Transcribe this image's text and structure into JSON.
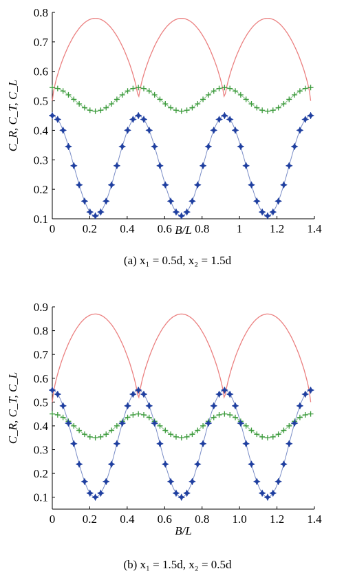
{
  "panels": [
    {
      "caption": "(a) x₁ = 0.5d, x₂ = 1.5d",
      "xlabel": "B/L",
      "ylabel": "C_R, C_T, C_L",
      "xlim": [
        0,
        1.4
      ],
      "ylim": [
        0.1,
        0.8
      ],
      "xticks": [
        "0",
        "0.2",
        "0.4",
        "0.6",
        "0.8",
        "1",
        "1.2",
        "1.4"
      ],
      "yticks": [
        "0.1",
        "0.2",
        "0.3",
        "0.4",
        "0.5",
        "0.6",
        "0.7",
        "0.8"
      ],
      "series": [
        {
          "color": "#e86a6a",
          "marker": "none",
          "mean": 0.64,
          "amp": -0.14,
          "peak_shape": 1,
          "min": 0.5,
          "max": 0.78
        },
        {
          "color": "#3a9a3a",
          "marker": "plus",
          "mean": 0.505,
          "amp": 0.04
        },
        {
          "color": "#1f3fa0",
          "marker": "star",
          "mean": 0.28,
          "amp": 0.17
        }
      ]
    },
    {
      "caption": "(b) x₁ = 1.5d, x₂ = 0.5d",
      "xlabel": "B/L",
      "ylabel": "C_R, C_T, C_L",
      "xlim": [
        0,
        1.4
      ],
      "ylim": [
        0.05,
        0.9
      ],
      "xticks": [
        "0",
        "0.2",
        "0.4",
        "0.6",
        "0.8",
        "1.0",
        "1.2",
        "1.4"
      ],
      "yticks": [
        "0.1",
        "0.2",
        "0.3",
        "0.4",
        "0.5",
        "0.6",
        "0.7",
        "0.8",
        "0.9"
      ],
      "series": [
        {
          "color": "#e86a6a",
          "marker": "none",
          "min": 0.5,
          "max": 0.87
        },
        {
          "color": "#3a9a3a",
          "marker": "plus",
          "mean": 0.4,
          "amp": 0.05
        },
        {
          "color": "#1f3fa0",
          "marker": "star",
          "mean": 0.325,
          "amp": 0.225
        }
      ]
    }
  ],
  "chart_data": [
    {
      "type": "line",
      "xlabel": "B/L",
      "ylabel": "C_R, C_T, C_L",
      "xlim": [
        0,
        1.4
      ],
      "ylim": [
        0.1,
        0.8
      ],
      "x": [
        0,
        0.1,
        0.2,
        0.23,
        0.3,
        0.4,
        0.46,
        0.5,
        0.6,
        0.69,
        0.8,
        0.9,
        0.92,
        1.0,
        1.1,
        1.15,
        1.2,
        1.3,
        1.38
      ],
      "series": [
        {
          "values": [
            0.52,
            0.66,
            0.76,
            0.78,
            0.74,
            0.6,
            0.52,
            0.58,
            0.72,
            0.78,
            0.7,
            0.56,
            0.52,
            0.6,
            0.75,
            0.78,
            0.76,
            0.62,
            0.5
          ]
        },
        {
          "values": [
            0.55,
            0.51,
            0.475,
            0.465,
            0.48,
            0.525,
            0.545,
            0.535,
            0.485,
            0.465,
            0.495,
            0.54,
            0.545,
            0.525,
            0.475,
            0.465,
            0.475,
            0.52,
            0.545
          ]
        },
        {
          "values": [
            0.45,
            0.27,
            0.13,
            0.11,
            0.17,
            0.38,
            0.45,
            0.4,
            0.2,
            0.11,
            0.25,
            0.43,
            0.45,
            0.36,
            0.16,
            0.11,
            0.14,
            0.32,
            0.45
          ]
        }
      ]
    },
    {
      "type": "line",
      "xlabel": "B/L",
      "ylabel": "C_R, C_T, C_L",
      "xlim": [
        0,
        1.4
      ],
      "ylim": [
        0.05,
        0.9
      ],
      "x": [
        0,
        0.1,
        0.2,
        0.23,
        0.3,
        0.4,
        0.46,
        0.5,
        0.6,
        0.69,
        0.8,
        0.9,
        0.92,
        1.0,
        1.1,
        1.15,
        1.2,
        1.3,
        1.38
      ],
      "series": [
        {
          "values": [
            0.5,
            0.7,
            0.84,
            0.87,
            0.82,
            0.62,
            0.5,
            0.6,
            0.8,
            0.87,
            0.76,
            0.56,
            0.5,
            0.66,
            0.84,
            0.87,
            0.84,
            0.66,
            0.5
          ]
        },
        {
          "values": [
            0.45,
            0.4,
            0.36,
            0.35,
            0.37,
            0.43,
            0.45,
            0.44,
            0.38,
            0.35,
            0.39,
            0.44,
            0.45,
            0.43,
            0.37,
            0.35,
            0.36,
            0.42,
            0.45
          ]
        },
        {
          "values": [
            0.55,
            0.31,
            0.13,
            0.1,
            0.17,
            0.44,
            0.55,
            0.48,
            0.22,
            0.1,
            0.28,
            0.52,
            0.55,
            0.43,
            0.16,
            0.1,
            0.14,
            0.38,
            0.55
          ]
        }
      ]
    }
  ]
}
